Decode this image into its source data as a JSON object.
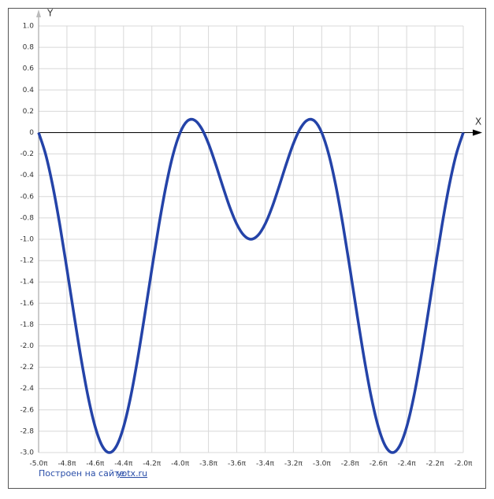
{
  "chart_data": {
    "type": "line",
    "x_label": "X",
    "y_label": "Y",
    "x": [
      -5,
      -4.95,
      -4.9,
      -4.85,
      -4.8,
      -4.75,
      -4.7,
      -4.65,
      -4.6,
      -4.55,
      -4.5,
      -4.45,
      -4.4,
      -4.35,
      -4.3,
      -4.25,
      -4.2,
      -4.15,
      -4.1,
      -4.05,
      -4,
      -3.95,
      -3.9,
      -3.85,
      -3.8,
      -3.75,
      -3.7,
      -3.65,
      -3.6,
      -3.55,
      -3.5,
      -3.45,
      -3.4,
      -3.35,
      -3.3,
      -3.25,
      -3.2,
      -3.15,
      -3.1,
      -3.05,
      -3,
      -2.95,
      -2.9,
      -2.85,
      -2.8,
      -2.75,
      -2.7,
      -2.65,
      -2.6,
      -2.55,
      -2.5,
      -2.45,
      -2.4,
      -2.35,
      -2.3,
      -2.25,
      -2.2,
      -2.15,
      -2.1,
      -2.05,
      -2
    ],
    "series": [
      {
        "color": "#2443a8",
        "values": [
          0,
          -0.205,
          -0.5,
          -0.866,
          -1.279,
          -1.707,
          -2.118,
          -2.479,
          -2.76,
          -2.939,
          -3,
          -2.939,
          -2.76,
          -2.479,
          -2.118,
          -1.707,
          -1.279,
          -0.866,
          -0.5,
          -0.205,
          0,
          0.108,
          0.118,
          0.042,
          -0.103,
          -0.293,
          -0.5,
          -0.697,
          -0.858,
          -0.963,
          -1,
          -0.963,
          -0.858,
          -0.697,
          -0.5,
          -0.293,
          -0.103,
          0.042,
          0.118,
          0.108,
          0,
          -0.205,
          -0.5,
          -0.866,
          -1.279,
          -1.707,
          -2.118,
          -2.479,
          -2.76,
          -2.939,
          -3,
          -2.939,
          -2.76,
          -2.479,
          -2.118,
          -1.707,
          -1.279,
          -0.866,
          -0.5,
          -0.205,
          0
        ]
      }
    ],
    "xlim": [
      -5,
      -2
    ],
    "ylim": [
      -3,
      1
    ],
    "xticks": [
      {
        "value": -5,
        "label": "-5.0π"
      },
      {
        "value": -4.8,
        "label": "-4.8π"
      },
      {
        "value": -4.6,
        "label": "-4.6π"
      },
      {
        "value": -4.4,
        "label": "-4.4π"
      },
      {
        "value": -4.2,
        "label": "-4.2π"
      },
      {
        "value": -4,
        "label": "-4.0π"
      },
      {
        "value": -3.8,
        "label": "-3.8π"
      },
      {
        "value": -3.6,
        "label": "-3.6π"
      },
      {
        "value": -3.4,
        "label": "-3.4π"
      },
      {
        "value": -3.2,
        "label": "-3.2π"
      },
      {
        "value": -3,
        "label": "-3.0π"
      },
      {
        "value": -2.8,
        "label": "-2.8π"
      },
      {
        "value": -2.6,
        "label": "-2.6π"
      },
      {
        "value": -2.4,
        "label": "-2.4π"
      },
      {
        "value": -2.2,
        "label": "-2.2π"
      },
      {
        "value": -2,
        "label": "-2.0π"
      }
    ],
    "yticks": [
      {
        "value": 1,
        "label": "1.0"
      },
      0.8,
      0.6,
      0.4,
      0.2,
      0,
      -0.2,
      -0.4,
      -0.6,
      -0.8,
      {
        "value": -1,
        "label": "-1.0"
      },
      -1.2,
      -1.4,
      -1.6,
      -1.8,
      {
        "value": -2,
        "label": "-2.0"
      },
      -2.2,
      -2.4,
      -2.6,
      -2.8,
      {
        "value": -3,
        "label": "-3.0"
      }
    ],
    "grid": true
  },
  "footer": {
    "text": "Построен на сайте",
    "link": "yotx.ru"
  }
}
